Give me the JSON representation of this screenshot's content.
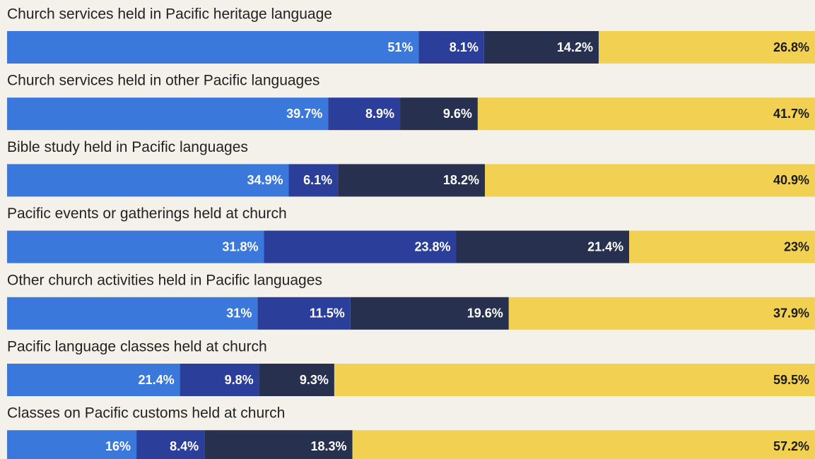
{
  "chart_data": {
    "type": "stacked-bar-horizontal",
    "categories": [
      "Church services held in Pacific heritage language",
      "Church services held in other Pacific languages",
      "Bible study held in Pacific languages",
      "Pacific events or gatherings held at church",
      "Other church activities held in Pacific languages",
      "Pacific language classes held at church",
      "Classes on Pacific customs held at church"
    ],
    "series": [
      {
        "color": "#3b78dc",
        "label_color": "#ffffff",
        "values": [
          51,
          39.7,
          34.9,
          31.8,
          31,
          21.4,
          16
        ],
        "value_labels": [
          "51%",
          "39.7%",
          "34.9%",
          "31.8%",
          "31%",
          "21.4%",
          "16%"
        ]
      },
      {
        "color": "#2b3f9a",
        "label_color": "#ffffff",
        "values": [
          8.1,
          8.9,
          6.1,
          23.8,
          11.5,
          9.8,
          8.4
        ],
        "value_labels": [
          "8.1%",
          "8.9%",
          "6.1%",
          "23.8%",
          "11.5%",
          "9.8%",
          "8.4%"
        ]
      },
      {
        "color": "#27314f",
        "label_color": "#ffffff",
        "values": [
          14.2,
          9.6,
          18.2,
          21.4,
          19.6,
          9.3,
          18.3
        ],
        "value_labels": [
          "14.2%",
          "9.6%",
          "18.2%",
          "21.4%",
          "19.6%",
          "9.3%",
          "18.3%"
        ]
      },
      {
        "color": "#f2d052",
        "label_color": "#1a1a1a",
        "values": [
          26.8,
          41.7,
          40.9,
          23,
          37.9,
          59.5,
          57.2
        ],
        "value_labels": [
          "26.8%",
          "41.7%",
          "40.9%",
          "23%",
          "37.9%",
          "59.5%",
          "57.2%"
        ]
      }
    ]
  }
}
